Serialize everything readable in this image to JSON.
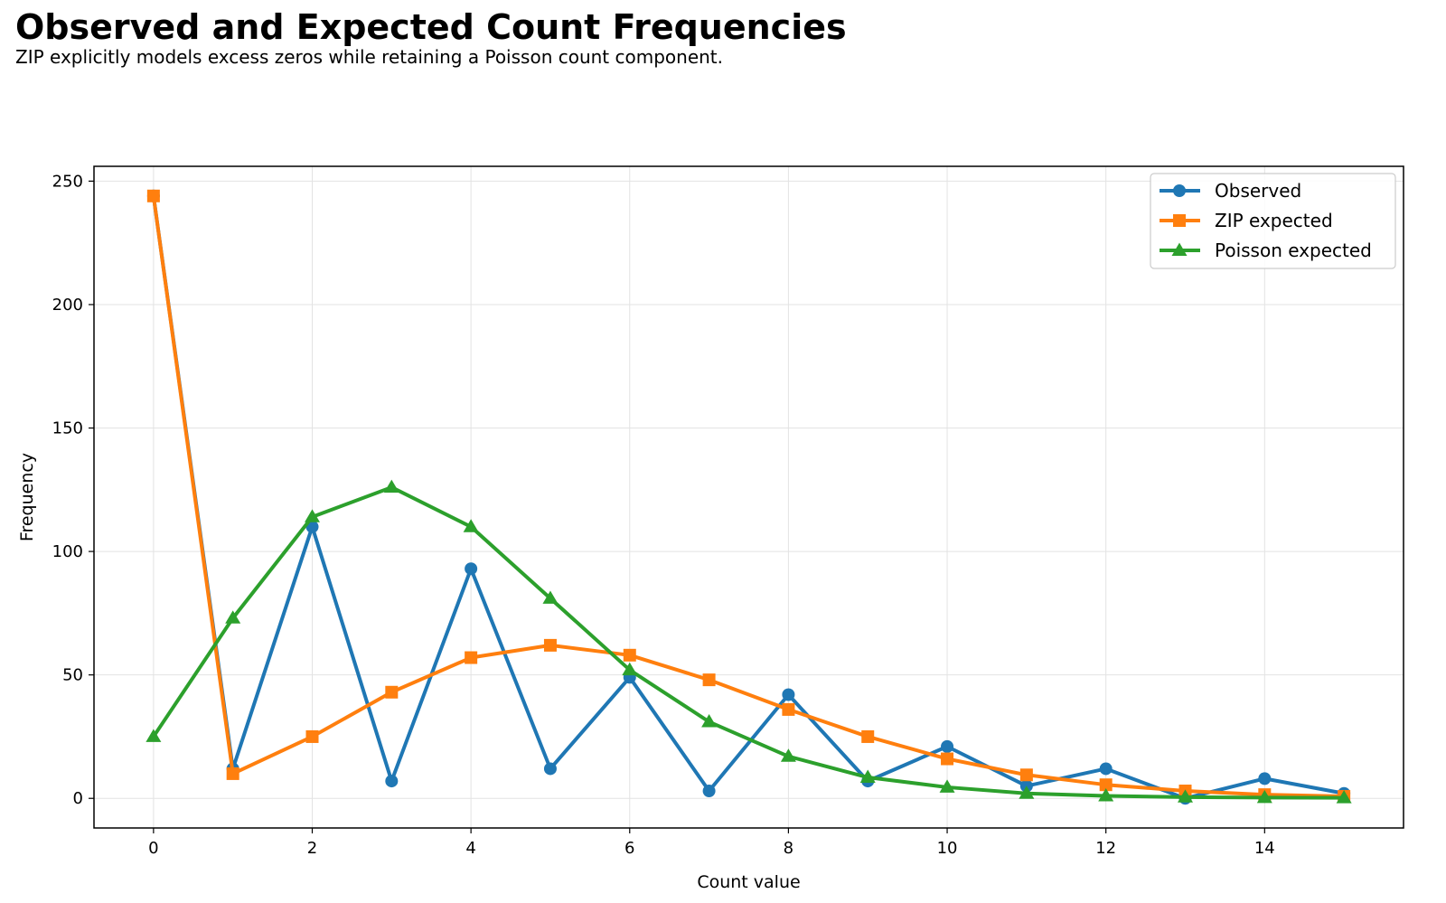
{
  "chart_data": {
    "type": "line",
    "title": "Observed and Expected Count Frequencies",
    "subtitle": "ZIP explicitly models excess zeros while retaining a Poisson count component.",
    "xlabel": "Count value",
    "ylabel": "Frequency",
    "x": [
      0,
      1,
      2,
      3,
      4,
      5,
      6,
      7,
      8,
      9,
      10,
      11,
      12,
      13,
      14,
      15
    ],
    "xlim": [
      -0.75,
      15.75
    ],
    "ylim": [
      -12,
      256
    ],
    "xticks": [
      0,
      2,
      4,
      6,
      8,
      10,
      12,
      14
    ],
    "yticks": [
      0,
      50,
      100,
      150,
      200,
      250
    ],
    "grid": true,
    "legend_position": "top-right",
    "series": [
      {
        "name": "Observed",
        "color": "#1f77b4",
        "marker": "circle",
        "values": [
          244,
          12,
          110,
          7,
          93,
          12,
          49,
          3,
          42,
          7,
          21,
          5,
          12,
          0,
          8,
          2
        ]
      },
      {
        "name": "ZIP expected",
        "color": "#ff7f0e",
        "marker": "square",
        "values": [
          244,
          10,
          25,
          43,
          57,
          62,
          58,
          48,
          36,
          25,
          16,
          9.5,
          5.5,
          3,
          1.5,
          0.8
        ]
      },
      {
        "name": "Poisson expected",
        "color": "#2ca02c",
        "marker": "triangle",
        "values": [
          25,
          73,
          114,
          126,
          110,
          81,
          52,
          31,
          17,
          8.5,
          4.5,
          2,
          1,
          0.5,
          0.3,
          0.2
        ]
      }
    ]
  }
}
